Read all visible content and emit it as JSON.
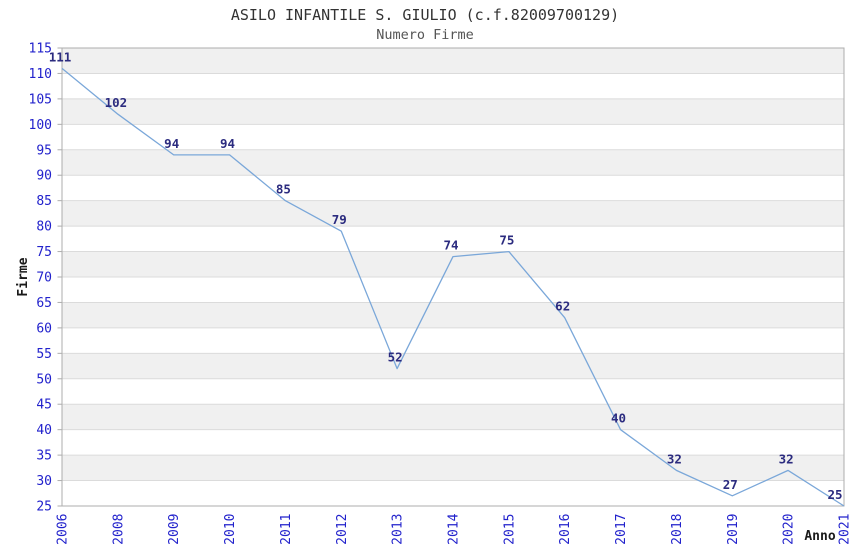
{
  "chart_data": {
    "type": "line",
    "title": "ASILO INFANTILE S. GIULIO (c.f.82009700129)",
    "subtitle": "Numero Firme",
    "xlabel": "Anno",
    "ylabel": "Firme",
    "categories": [
      "2006",
      "2008",
      "2009",
      "2010",
      "2011",
      "2012",
      "2013",
      "2014",
      "2015",
      "2016",
      "2017",
      "2018",
      "2019",
      "2020",
      "2021"
    ],
    "values": [
      111,
      102,
      94,
      94,
      85,
      79,
      52,
      74,
      75,
      62,
      40,
      32,
      27,
      32,
      25
    ],
    "point_labels": [
      "111",
      "102",
      "94",
      "94",
      "85",
      "79",
      "52",
      "74",
      "75",
      "62",
      "40",
      "32",
      "27",
      "32",
      "25"
    ],
    "ylim": [
      25,
      115
    ],
    "ytick_step": 5,
    "y_ticks": [
      25,
      30,
      35,
      40,
      45,
      50,
      55,
      60,
      65,
      70,
      75,
      80,
      85,
      90,
      95,
      100,
      105,
      110,
      115
    ],
    "grid": "horizontal alternating bands, gridline every 5 units",
    "legend": "none",
    "x_label_rotation": -90,
    "colors": {
      "line": "#7AA7D9",
      "point_label": "#2B2B7F",
      "tick_label": "#2222CC",
      "band_gray": "#F0F0F0",
      "band_white": "#FFFFFF",
      "gridline": "#DBDBDB",
      "border": "#ADADAD",
      "title": "#333333",
      "subtitle": "#555555",
      "axis_title": "#1A1A1A",
      "background": "#FFFFFF"
    }
  }
}
